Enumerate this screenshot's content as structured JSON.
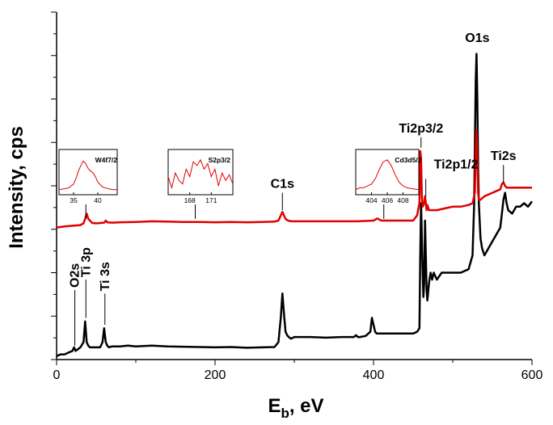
{
  "chart_data": {
    "type": "line",
    "title": "",
    "xlabel": "E",
    "xlabel_sub": "b",
    "xlabel_suffix": ", eV",
    "ylabel": "Intensity, cps",
    "xlim": [
      0,
      600
    ],
    "x_ticks": [
      0,
      200,
      400,
      600
    ],
    "x_tick_labels": [
      "0",
      "200",
      "400",
      "600"
    ],
    "y_tick_labels": [],
    "ylim": [
      0,
      100
    ],
    "grid": false,
    "series": [
      {
        "color": "#000000",
        "x": [
          0,
          5,
          10,
          15,
          20,
          22,
          24,
          27,
          30,
          34,
          36,
          38,
          40,
          42,
          46,
          50,
          55,
          58,
          60,
          62,
          64,
          66,
          70,
          80,
          90,
          100,
          120,
          140,
          160,
          180,
          200,
          220,
          240,
          260,
          275,
          280,
          283,
          285,
          287,
          289,
          291,
          293,
          296,
          300,
          305,
          310,
          320,
          340,
          360,
          375,
          378,
          380,
          383,
          390,
          396,
          398,
          400,
          402,
          404,
          408,
          412,
          420,
          430,
          440,
          450,
          455,
          458,
          459,
          460,
          461,
          462,
          463,
          464,
          465,
          466,
          467,
          468,
          470,
          472,
          474,
          476,
          480,
          486,
          492,
          500,
          510,
          520,
          525,
          527,
          529,
          530,
          531,
          532,
          533,
          534,
          535,
          537,
          540,
          545,
          550,
          555,
          560,
          562,
          564,
          566,
          568,
          570,
          575,
          580,
          585,
          590,
          595,
          600
        ],
        "y": [
          1,
          1.5,
          1.5,
          2,
          2.5,
          3.5,
          2.5,
          3,
          3.5,
          5,
          11,
          5,
          4,
          3.5,
          3.5,
          3.5,
          3.5,
          5,
          9,
          5,
          4,
          3.5,
          3.8,
          3.8,
          4,
          3.8,
          4,
          3.8,
          3.7,
          3.6,
          3.5,
          3.6,
          3.4,
          3.5,
          3.6,
          5,
          12,
          19,
          13,
          8,
          7,
          6.5,
          6,
          6.5,
          6.5,
          6.5,
          6.5,
          6.3,
          6.5,
          6.5,
          7,
          6.5,
          6.5,
          6.8,
          8,
          12,
          10,
          8,
          7.5,
          7.5,
          7.5,
          7.5,
          7.5,
          7.5,
          7.5,
          8,
          9,
          30,
          45,
          35,
          25,
          18,
          22,
          40,
          30,
          20,
          17,
          22,
          25,
          23,
          25,
          23,
          25,
          25,
          25,
          25,
          26,
          30,
          45,
          80,
          88,
          75,
          55,
          45,
          40,
          35,
          32,
          30,
          32,
          34,
          36,
          38,
          42,
          46,
          48,
          45,
          43,
          42,
          44,
          44,
          45,
          44,
          45.5
        ]
      },
      {
        "color": "#e00000",
        "x": [
          0,
          10,
          20,
          30,
          34,
          36,
          38,
          40,
          45,
          50,
          55,
          60,
          62,
          64,
          70,
          80,
          100,
          120,
          140,
          160,
          180,
          200,
          220,
          240,
          260,
          275,
          280,
          283,
          285,
          287,
          289,
          292,
          296,
          300,
          320,
          340,
          360,
          380,
          400,
          405,
          408,
          410,
          415,
          420,
          430,
          440,
          450,
          455,
          458,
          459,
          460,
          461,
          462,
          464,
          465,
          466,
          467,
          468,
          470,
          475,
          480,
          490,
          500,
          510,
          520,
          525,
          528,
          529,
          530,
          531,
          532,
          533,
          535,
          540,
          550,
          560,
          562,
          564,
          566,
          568,
          570,
          580,
          590,
          600
        ],
        "y": [
          38,
          38.3,
          38.5,
          38.7,
          39.2,
          40.5,
          42,
          40.5,
          39.3,
          39.2,
          39.3,
          39.4,
          40,
          39.5,
          39.4,
          39.5,
          39.6,
          39.8,
          39.7,
          39.6,
          39.6,
          39.5,
          39.6,
          39.5,
          39.6,
          39.7,
          40,
          41.5,
          42.5,
          41.5,
          40.5,
          40,
          39.8,
          39.8,
          39.8,
          39.8,
          39.8,
          39.8,
          40,
          40.6,
          40.2,
          40,
          40,
          40,
          40,
          40,
          40,
          41.5,
          45,
          60,
          58,
          47,
          44,
          45,
          47,
          45,
          43,
          44.5,
          43,
          43,
          43,
          43.5,
          44,
          44,
          44.5,
          45,
          48,
          60,
          66,
          57,
          48,
          46,
          46,
          47,
          48,
          49,
          50.5,
          51,
          50,
          49.5,
          49.5,
          49.5,
          49.5,
          49.5
        ]
      }
    ],
    "annotations": [
      {
        "text": "O2s",
        "x": 23,
        "y_start": 4,
        "y_end": 20,
        "rotate": true
      },
      {
        "text": "Ti 3p",
        "x": 37,
        "y_start": 12,
        "y_end": 23,
        "rotate": true
      },
      {
        "text": "Ti 3s",
        "x": 61,
        "y_start": 10,
        "y_end": 19,
        "rotate": true
      },
      {
        "text": "C1s",
        "x": 285,
        "y_start": 43,
        "y_end": 48,
        "rotate": false
      },
      {
        "text": "Ti2p3/2",
        "x": 460,
        "y_start": 61,
        "y_end": 64,
        "rotate": false
      },
      {
        "text": "Ti2p1/2",
        "x": 466,
        "y_start": 47,
        "y_end": 52,
        "rotate": false
      },
      {
        "text": "O1s",
        "x": 531,
        "y_start": 90,
        "y_end": 90,
        "rotate": false
      },
      {
        "text": "Ti2s",
        "x": 564,
        "y_start": 51,
        "y_end": 56,
        "rotate": false
      }
    ],
    "insets": [
      {
        "title": "W4f7/2",
        "xlim": [
          32,
          44
        ],
        "ticks": [
          35,
          40
        ],
        "tick_labels": [
          "35",
          "40"
        ],
        "pointer_x": 37,
        "x": [
          32,
          33,
          34,
          35,
          35.5,
          36,
          36.5,
          37,
          37.5,
          38,
          38.5,
          39,
          39.5,
          40,
          41,
          42,
          43,
          44
        ],
        "y": [
          0.05,
          0.07,
          0.1,
          0.2,
          0.35,
          0.55,
          0.7,
          0.82,
          0.75,
          0.62,
          0.55,
          0.5,
          0.4,
          0.25,
          0.12,
          0.08,
          0.05,
          0.05
        ]
      },
      {
        "title": "S2p3/2",
        "xlim": [
          165,
          174
        ],
        "ticks": [
          168,
          171
        ],
        "tick_labels": [
          "168",
          "171"
        ],
        "pointer_x": 175,
        "x": [
          165,
          165.5,
          166,
          166.5,
          167,
          167.5,
          168,
          168.5,
          169,
          169.5,
          170,
          170.5,
          171,
          171.5,
          172,
          172.5,
          173,
          173.5,
          174
        ],
        "y": [
          0.4,
          0.1,
          0.5,
          0.3,
          0.2,
          0.6,
          0.4,
          0.8,
          0.7,
          0.85,
          0.6,
          0.75,
          0.4,
          0.6,
          0.15,
          0.5,
          0.3,
          0.45,
          0.2
        ]
      },
      {
        "title": "Cd3d5/2",
        "xlim": [
          402,
          410
        ],
        "ticks": [
          404,
          406,
          408
        ],
        "tick_labels": [
          "404",
          "406",
          "408"
        ],
        "pointer_x": 413,
        "x": [
          402,
          402.5,
          403,
          403.5,
          404,
          404.5,
          405,
          405.5,
          406,
          406.5,
          407,
          407.5,
          408,
          408.5,
          409,
          410
        ],
        "y": [
          0.05,
          0.1,
          0.1,
          0.15,
          0.2,
          0.35,
          0.6,
          0.8,
          0.85,
          0.7,
          0.45,
          0.25,
          0.15,
          0.1,
          0.08,
          0.05
        ]
      }
    ]
  }
}
